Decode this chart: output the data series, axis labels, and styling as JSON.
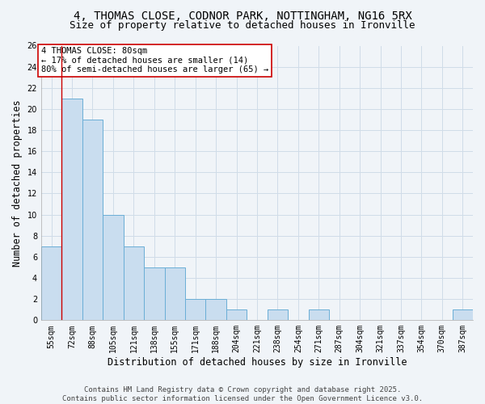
{
  "title_line1": "4, THOMAS CLOSE, CODNOR PARK, NOTTINGHAM, NG16 5RX",
  "title_line2": "Size of property relative to detached houses in Ironville",
  "xlabel": "Distribution of detached houses by size in Ironville",
  "ylabel": "Number of detached properties",
  "categories": [
    "55sqm",
    "72sqm",
    "88sqm",
    "105sqm",
    "121sqm",
    "138sqm",
    "155sqm",
    "171sqm",
    "188sqm",
    "204sqm",
    "221sqm",
    "238sqm",
    "254sqm",
    "271sqm",
    "287sqm",
    "304sqm",
    "321sqm",
    "337sqm",
    "354sqm",
    "370sqm",
    "387sqm"
  ],
  "values": [
    7,
    21,
    19,
    10,
    7,
    5,
    5,
    2,
    2,
    1,
    0,
    1,
    0,
    1,
    0,
    0,
    0,
    0,
    0,
    0,
    1
  ],
  "bar_color": "#c9ddef",
  "bar_edge_color": "#6aaed6",
  "grid_color": "#d0dce8",
  "background_color": "#f0f4f8",
  "annotation_box_text": "4 THOMAS CLOSE: 80sqm\n← 17% of detached houses are smaller (14)\n80% of semi-detached houses are larger (65) →",
  "annotation_box_color": "#ffffff",
  "annotation_box_edge_color": "#cc0000",
  "vline_x": 0.5,
  "vline_color": "#cc0000",
  "ylim": [
    0,
    26
  ],
  "yticks": [
    0,
    2,
    4,
    6,
    8,
    10,
    12,
    14,
    16,
    18,
    20,
    22,
    24,
    26
  ],
  "footer_line1": "Contains HM Land Registry data © Crown copyright and database right 2025.",
  "footer_line2": "Contains public sector information licensed under the Open Government Licence v3.0.",
  "title_fontsize": 10,
  "subtitle_fontsize": 9,
  "axis_label_fontsize": 8.5,
  "tick_fontsize": 7,
  "annotation_fontsize": 7.5,
  "footer_fontsize": 6.5
}
